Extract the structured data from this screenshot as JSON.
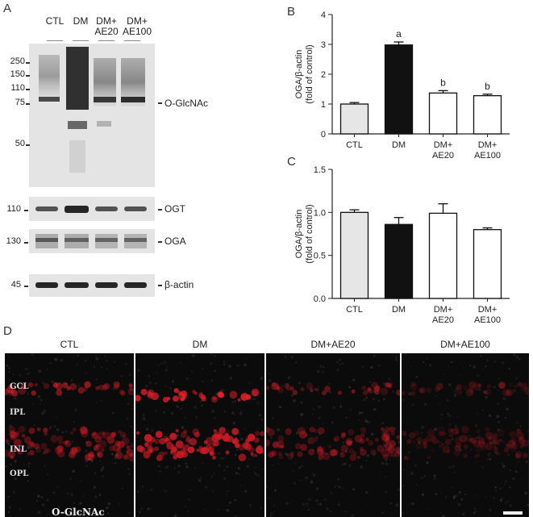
{
  "panels": {
    "A": "A",
    "B": "B",
    "C": "C",
    "D": "D"
  },
  "blot": {
    "lanes": [
      "CTL",
      "DM",
      "DM+\nAE20",
      "DM+\nAE100"
    ],
    "main_markers": [
      "250",
      "150",
      "110",
      "75",
      "50"
    ],
    "main_label": "O-GlcNAc",
    "strips": [
      {
        "marker": "110",
        "label": "OGT"
      },
      {
        "marker": "130",
        "label": "OGA"
      },
      {
        "marker": "45",
        "label": "β-actin"
      }
    ]
  },
  "chart_data": [
    {
      "type": "bar",
      "panel": "B",
      "categories": [
        "CTL",
        "DM",
        "DM+\nAE20",
        "DM+\nAE100"
      ],
      "values": [
        1.0,
        2.98,
        1.37,
        1.28
      ],
      "errors": [
        0.05,
        0.1,
        0.08,
        0.05
      ],
      "annotations": [
        "",
        "a",
        "b",
        "b"
      ],
      "bar_colors": [
        "#e6e6e6",
        "#111111",
        "#ffffff",
        "#ffffff"
      ],
      "ylabel": "OGA/β-actin\n(fold of control)",
      "ylim": [
        0,
        4
      ],
      "yticks": [
        "0",
        "1",
        "2",
        "3",
        "4"
      ]
    },
    {
      "type": "bar",
      "panel": "C",
      "categories": [
        "CTL",
        "DM",
        "DM+\nAE20",
        "DM+\nAE100"
      ],
      "values": [
        1.0,
        0.86,
        0.99,
        0.8
      ],
      "errors": [
        0.03,
        0.08,
        0.11,
        0.02
      ],
      "annotations": [
        "",
        "",
        "",
        ""
      ],
      "bar_colors": [
        "#e6e6e6",
        "#111111",
        "#ffffff",
        "#ffffff"
      ],
      "ylabel": "OGA/β-actin\n(fold of control)",
      "ylim": [
        0,
        1.5
      ],
      "yticks": [
        "0.0",
        "0.5",
        "1.0",
        "1.5"
      ]
    }
  ],
  "micrographs": {
    "titles": [
      "CTL",
      "DM",
      "DM+AE20",
      "DM+AE100"
    ],
    "layers": [
      "GCL",
      "IPL",
      "INL",
      "OPL"
    ],
    "stain_label": "O-GlcNAc",
    "red_intensity": [
      0.55,
      0.95,
      0.45,
      0.25
    ]
  }
}
